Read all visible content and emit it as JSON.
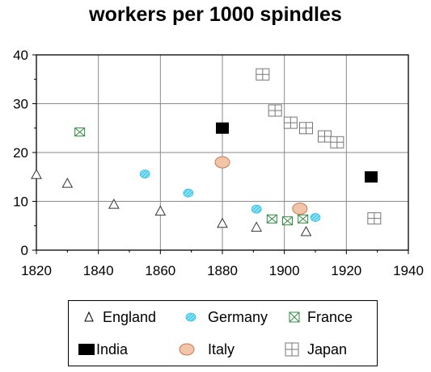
{
  "chart_data": {
    "type": "scatter",
    "title": "workers per 1000 spindles",
    "xlabel": "",
    "ylabel": "",
    "xlim": [
      1820,
      1940
    ],
    "ylim": [
      0,
      40
    ],
    "x_ticks": [
      1820,
      1840,
      1860,
      1880,
      1900,
      1920,
      1940
    ],
    "y_ticks": [
      0,
      10,
      20,
      30,
      40
    ],
    "grid": true,
    "legend_position": "bottom",
    "series": [
      {
        "name": "England",
        "marker": "triangle",
        "color": "#000000",
        "points": [
          [
            1820,
            15.5
          ],
          [
            1830,
            13.7
          ],
          [
            1845,
            9.4
          ],
          [
            1860,
            8.0
          ],
          [
            1880,
            5.5
          ],
          [
            1891,
            4.7
          ],
          [
            1907,
            3.8
          ]
        ]
      },
      {
        "name": "Germany",
        "marker": "hatched-circle",
        "color": "#29c4e8",
        "points": [
          [
            1855,
            15.6
          ],
          [
            1869,
            11.7
          ],
          [
            1891,
            8.4
          ],
          [
            1910,
            6.7
          ]
        ]
      },
      {
        "name": "France",
        "marker": "crossed-square",
        "color": "#2e8b3e",
        "points": [
          [
            1834,
            24.2
          ],
          [
            1896,
            6.4
          ],
          [
            1901,
            6.0
          ],
          [
            1906,
            6.4
          ]
        ]
      },
      {
        "name": "India",
        "marker": "filled-square",
        "color": "#000000",
        "points": [
          [
            1880,
            25.0
          ],
          [
            1928,
            15.0
          ]
        ]
      },
      {
        "name": "Italy",
        "marker": "circle",
        "color": "#f2c4a8",
        "points": [
          [
            1880,
            18.0
          ],
          [
            1905,
            8.5
          ]
        ]
      },
      {
        "name": "Japan",
        "marker": "gridded-square",
        "color": "#808080",
        "points": [
          [
            1893,
            36.0
          ],
          [
            1897,
            28.6
          ],
          [
            1902,
            26.1
          ],
          [
            1907,
            25.0
          ],
          [
            1913,
            23.3
          ],
          [
            1917,
            22.1
          ],
          [
            1929,
            6.5
          ]
        ]
      }
    ]
  },
  "legend": {
    "england": "England",
    "germany": "Germany",
    "france": "France",
    "india": "India",
    "italy": "Italy",
    "japan": "Japan"
  }
}
